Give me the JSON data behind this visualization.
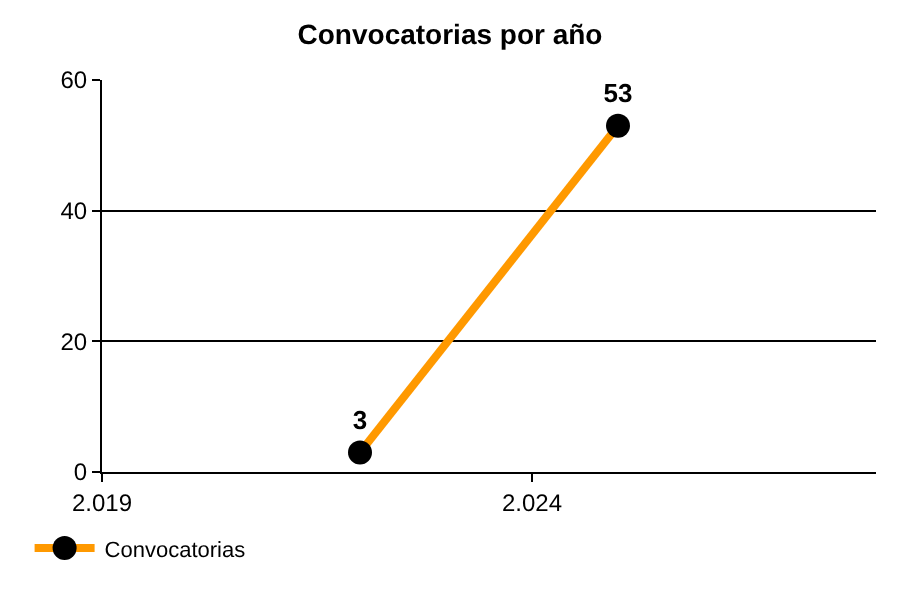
{
  "chart_data": {
    "type": "line",
    "title": "Convocatorias por año",
    "x": [
      2022,
      2025
    ],
    "series": [
      {
        "name": "Convocatorias",
        "color": "#ff9900",
        "values": [
          3,
          53
        ]
      }
    ],
    "xlim": [
      2019,
      2028
    ],
    "xticks": [
      {
        "value": 2019,
        "label": "2.019"
      },
      {
        "value": 2024,
        "label": "2.024"
      }
    ],
    "ylim": [
      0,
      60
    ],
    "yticks": [
      0,
      20,
      40,
      60
    ],
    "grid": "y",
    "legend": "bottom left",
    "marker": "circle",
    "line_style": "solid",
    "data_labels": true
  }
}
